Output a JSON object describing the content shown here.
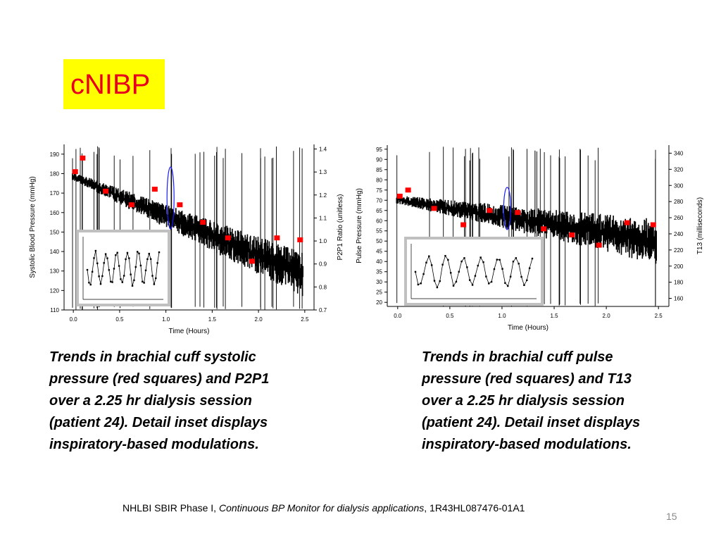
{
  "slide": {
    "title": "cNIBP",
    "caption_left": "Trends in brachial cuff systolic pressure (red squares) and P2P1 over a 2.25 hr dialysis session (patient 24). Detail inset displays inspiratory-based modulations.",
    "caption_right": "Trends in brachial cuff pulse pressure (red squares) and T13 over a 2.25 hr dialysis session (patient 24). Detail inset displays inspiratory-based modulations.",
    "footer_prefix": "NHLBI SBIR Phase I, ",
    "footer_italic": "Continuous BP Monitor for dialysis applications",
    "footer_suffix": ", 1R43HL087476-01A1",
    "page_number": "15"
  },
  "colors": {
    "title_bg": "#ffff00",
    "title_text": "#e8001c",
    "marker": "#ff0000",
    "trace": "#000000",
    "highlight": "#1a1aff"
  },
  "chart_data": [
    {
      "type": "line",
      "xlabel": "Time (Hours)",
      "ylabel": "Systolic Blood Pressure (mmHg)",
      "y2label": "P2P1 Ratio (unitless)",
      "xlim": [
        -0.1,
        2.6
      ],
      "ylim": [
        110,
        195
      ],
      "y2lim": [
        0.7,
        1.42
      ],
      "xticks": [
        "0.0",
        "0.5",
        "1.0",
        "1.5",
        "2.0",
        "2.5"
      ],
      "yticks": [
        "110",
        "120",
        "130",
        "140",
        "150",
        "160",
        "170",
        "180",
        "190"
      ],
      "y2ticks": [
        "0.7",
        "0.8",
        "0.9",
        "1.0",
        "1.1",
        "1.2",
        "1.3",
        "1.4"
      ],
      "series": [
        {
          "marker": "square",
          "x": [
            0.02,
            0.1,
            0.35,
            0.63,
            0.88,
            1.15,
            1.4,
            1.67,
            1.93,
            2.2,
            2.45
          ],
          "y": [
            181,
            188,
            171,
            164,
            172,
            164,
            155,
            147,
            135,
            147,
            146
          ]
        }
      ],
      "inset": true,
      "highlight_x": 1.05
    },
    {
      "type": "line",
      "xlabel": "Time (Hours)",
      "ylabel": "Pulse Pressure (mmHg)",
      "y2label": "T13 (milliseconds)",
      "xlim": [
        -0.1,
        2.6
      ],
      "ylim": [
        18,
        97
      ],
      "y2lim": [
        150,
        350
      ],
      "xticks": [
        "0.0",
        "0.5",
        "1.0",
        "1.5",
        "2.0",
        "2.5"
      ],
      "yticks": [
        "20",
        "25",
        "30",
        "35",
        "40",
        "45",
        "50",
        "55",
        "60",
        "65",
        "70",
        "75",
        "80",
        "85",
        "90",
        "95"
      ],
      "y2ticks": [
        "160",
        "180",
        "200",
        "220",
        "240",
        "260",
        "280",
        "300",
        "320",
        "340"
      ],
      "series": [
        {
          "marker": "square",
          "x": [
            0.02,
            0.1,
            0.35,
            0.63,
            0.88,
            1.15,
            1.4,
            1.67,
            1.93,
            2.2,
            2.45
          ],
          "y": [
            72,
            75,
            66,
            58,
            65,
            64,
            56,
            53,
            48,
            59,
            58
          ]
        }
      ],
      "inset": true,
      "highlight_x": 1.05
    }
  ]
}
